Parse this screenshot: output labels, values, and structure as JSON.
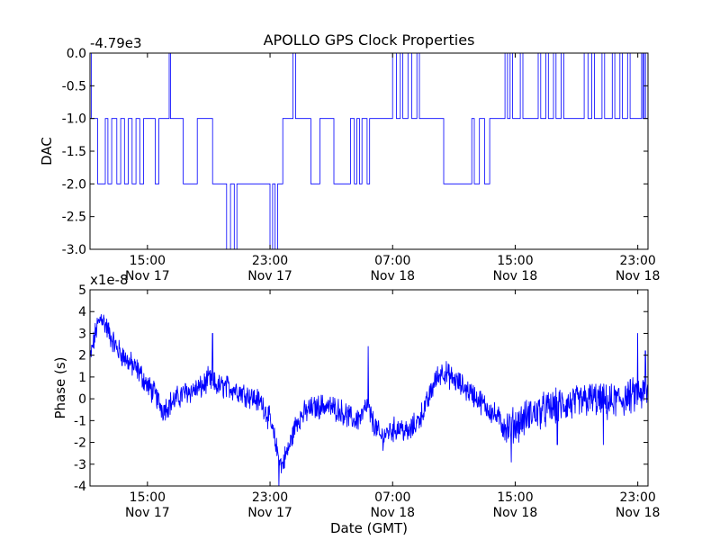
{
  "chart_data": [
    {
      "type": "line",
      "title": "APOLLO GPS Clock Properties",
      "ylabel": "DAC",
      "xlabel": "",
      "offset_label": "-4.79e3",
      "series_color": "#0000ff",
      "xlim": [
        "Nov 17 11:15",
        "Nov 18 23:40"
      ],
      "ylim": [
        -3.0,
        0.0
      ],
      "y_ticks": [
        "0.0",
        "-0.5",
        "-1.0",
        "-1.5",
        "-2.0",
        "-2.5",
        "-3.0"
      ],
      "x_ticks": [
        {
          "time": "15:00",
          "date": "Nov 17"
        },
        {
          "time": "23:00",
          "date": "Nov 17"
        },
        {
          "time": "07:00",
          "date": "Nov 18"
        },
        {
          "time": "15:00",
          "date": "Nov 18"
        },
        {
          "time": "23:00",
          "date": "Nov 18"
        }
      ],
      "steps": [
        [
          "Nov 17 11:15",
          0
        ],
        [
          "Nov 17 11:20",
          -1
        ],
        [
          "Nov 17 11:45",
          -2
        ],
        [
          "Nov 17 12:15",
          -1
        ],
        [
          "Nov 17 12:25",
          -2
        ],
        [
          "Nov 17 12:40",
          -1
        ],
        [
          "Nov 17 13:00",
          -2
        ],
        [
          "Nov 17 13:15",
          -1
        ],
        [
          "Nov 17 13:30",
          -2
        ],
        [
          "Nov 17 13:45",
          -1
        ],
        [
          "Nov 17 14:00",
          -2
        ],
        [
          "Nov 17 14:15",
          -1
        ],
        [
          "Nov 17 14:30",
          -2
        ],
        [
          "Nov 17 14:45",
          -1
        ],
        [
          "Nov 17 15:30",
          -2
        ],
        [
          "Nov 17 15:45",
          -1
        ],
        [
          "Nov 17 16:15",
          -1
        ],
        [
          "Nov 17 16:25",
          0
        ],
        [
          "Nov 17 16:30",
          -1
        ],
        [
          "Nov 17 17:20",
          -2
        ],
        [
          "Nov 17 18:15",
          -1
        ],
        [
          "Nov 17 19:15",
          -2
        ],
        [
          "Nov 17 20:10",
          -3
        ],
        [
          "Nov 17 20:25",
          -2
        ],
        [
          "Nov 17 20:40",
          -3
        ],
        [
          "Nov 17 20:50",
          -2
        ],
        [
          "Nov 17 23:00",
          -3
        ],
        [
          "Nov 17 23:10",
          -2
        ],
        [
          "Nov 17 23:20",
          -3
        ],
        [
          "Nov 17 23:30",
          -2
        ],
        [
          "Nov 17 23:50",
          -1
        ],
        [
          "Nov 18 00:30",
          0
        ],
        [
          "Nov 18 00:40",
          -1
        ],
        [
          "Nov 18 01:40",
          -2
        ],
        [
          "Nov 18 02:15",
          -1
        ],
        [
          "Nov 18 03:10",
          -2
        ],
        [
          "Nov 18 04:15",
          -1
        ],
        [
          "Nov 18 04:30",
          -2
        ],
        [
          "Nov 18 04:40",
          -1
        ],
        [
          "Nov 18 04:50",
          -2
        ],
        [
          "Nov 18 05:00",
          -1
        ],
        [
          "Nov 18 05:20",
          -2
        ],
        [
          "Nov 18 05:30",
          -1
        ],
        [
          "Nov 18 07:00",
          0
        ],
        [
          "Nov 18 07:15",
          -1
        ],
        [
          "Nov 18 07:30",
          0
        ],
        [
          "Nov 18 07:40",
          -1
        ],
        [
          "Nov 18 08:00",
          0
        ],
        [
          "Nov 18 08:15",
          -1
        ],
        [
          "Nov 18 08:35",
          0
        ],
        [
          "Nov 18 08:45",
          -1
        ],
        [
          "Nov 18 09:00",
          -1
        ],
        [
          "Nov 18 10:00",
          -1
        ],
        [
          "Nov 18 10:20",
          -2
        ],
        [
          "Nov 18 12:10",
          -1
        ],
        [
          "Nov 18 12:20",
          -2
        ],
        [
          "Nov 18 12:40",
          -1
        ],
        [
          "Nov 18 13:00",
          -2
        ],
        [
          "Nov 18 13:20",
          -1
        ],
        [
          "Nov 18 14:20",
          0
        ],
        [
          "Nov 18 14:30",
          -1
        ],
        [
          "Nov 18 14:40",
          0
        ],
        [
          "Nov 18 14:50",
          -1
        ],
        [
          "Nov 18 15:20",
          0
        ],
        [
          "Nov 18 15:30",
          -1
        ],
        [
          "Nov 18 16:00",
          -1
        ],
        [
          "Nov 18 16:30",
          0
        ],
        [
          "Nov 18 16:40",
          -1
        ],
        [
          "Nov 18 17:00",
          0
        ],
        [
          "Nov 18 17:10",
          -1
        ],
        [
          "Nov 18 17:30",
          0
        ],
        [
          "Nov 18 17:40",
          -1
        ],
        [
          "Nov 18 18:00",
          0
        ],
        [
          "Nov 18 18:10",
          -1
        ],
        [
          "Nov 18 19:30",
          0
        ],
        [
          "Nov 18 19:45",
          -1
        ],
        [
          "Nov 18 20:00",
          0
        ],
        [
          "Nov 18 20:10",
          -1
        ],
        [
          "Nov 18 20:40",
          0
        ],
        [
          "Nov 18 20:50",
          -1
        ],
        [
          "Nov 18 21:20",
          0
        ],
        [
          "Nov 18 21:30",
          -1
        ],
        [
          "Nov 18 21:50",
          0
        ],
        [
          "Nov 18 22:00",
          -1
        ],
        [
          "Nov 18 22:20",
          0
        ],
        [
          "Nov 18 22:30",
          -1
        ],
        [
          "Nov 18 23:00",
          -1
        ],
        [
          "Nov 18 23:15",
          0
        ],
        [
          "Nov 18 23:20",
          -1
        ],
        [
          "Nov 18 23:25",
          0
        ],
        [
          "Nov 18 23:30",
          -1
        ],
        [
          "Nov 18 23:40",
          -1
        ]
      ]
    },
    {
      "type": "line",
      "title": "",
      "ylabel": "Phase (s)",
      "xlabel": "Date (GMT)",
      "offset_label": "x1e-8",
      "series_color": "#0000ff",
      "xlim": [
        "Nov 17 11:15",
        "Nov 18 23:40"
      ],
      "ylim": [
        -4,
        5
      ],
      "y_ticks": [
        "5",
        "4",
        "3",
        "2",
        "1",
        "0",
        "-1",
        "-2",
        "-3",
        "-4"
      ],
      "x_ticks": [
        {
          "time": "15:00",
          "date": "Nov 17"
        },
        {
          "time": "23:00",
          "date": "Nov 17"
        },
        {
          "time": "07:00",
          "date": "Nov 18"
        },
        {
          "time": "15:00",
          "date": "Nov 18"
        },
        {
          "time": "23:00",
          "date": "Nov 18"
        }
      ],
      "trend": [
        [
          "Nov 17 11:15",
          1.8
        ],
        [
          "Nov 17 11:40",
          3.2
        ],
        [
          "Nov 17 12:00",
          3.8
        ],
        [
          "Nov 17 12:30",
          3.0
        ],
        [
          "Nov 17 13:00",
          2.3
        ],
        [
          "Nov 17 13:45",
          1.7
        ],
        [
          "Nov 17 14:30",
          1.2
        ],
        [
          "Nov 17 15:00",
          0.6
        ],
        [
          "Nov 17 15:30",
          0.2
        ],
        [
          "Nov 17 16:00",
          -0.5
        ],
        [
          "Nov 17 16:30",
          -0.2
        ],
        [
          "Nov 17 17:30",
          0.3
        ],
        [
          "Nov 17 18:30",
          0.5
        ],
        [
          "Nov 17 19:00",
          0.9
        ],
        [
          "Nov 17 19:30",
          0.6
        ],
        [
          "Nov 17 20:30",
          0.5
        ],
        [
          "Nov 17 21:30",
          0.2
        ],
        [
          "Nov 17 22:30",
          -0.2
        ],
        [
          "Nov 17 23:00",
          -1.0
        ],
        [
          "Nov 17 23:30",
          -2.5
        ],
        [
          "Nov 17 23:45",
          -3.1
        ],
        [
          "Nov 18 00:15",
          -2.2
        ],
        [
          "Nov 18 00:45",
          -1.0
        ],
        [
          "Nov 18 01:30",
          -0.5
        ],
        [
          "Nov 18 02:30",
          -0.3
        ],
        [
          "Nov 18 03:30",
          -0.5
        ],
        [
          "Nov 18 04:30",
          -1.0
        ],
        [
          "Nov 18 05:00",
          -0.8
        ],
        [
          "Nov 18 05:20",
          -0.3
        ],
        [
          "Nov 18 05:40",
          -1.0
        ],
        [
          "Nov 18 06:15",
          -1.8
        ],
        [
          "Nov 18 06:45",
          -1.5
        ],
        [
          "Nov 18 07:30",
          -1.3
        ],
        [
          "Nov 18 08:00",
          -1.6
        ],
        [
          "Nov 18 08:40",
          -1.0
        ],
        [
          "Nov 18 09:15",
          -0.2
        ],
        [
          "Nov 18 09:45",
          0.8
        ],
        [
          "Nov 18 10:15",
          1.3
        ],
        [
          "Nov 18 10:45",
          1.0
        ],
        [
          "Nov 18 11:30",
          0.6
        ],
        [
          "Nov 18 12:15",
          0.2
        ],
        [
          "Nov 18 13:00",
          -0.3
        ],
        [
          "Nov 18 13:45",
          -0.8
        ],
        [
          "Nov 18 14:30",
          -1.3
        ],
        [
          "Nov 18 15:15",
          -1.1
        ],
        [
          "Nov 18 16:00",
          -0.7
        ],
        [
          "Nov 18 17:00",
          -0.5
        ],
        [
          "Nov 18 18:00",
          -0.3
        ],
        [
          "Nov 18 19:00",
          -0.2
        ],
        [
          "Nov 18 20:00",
          0.0
        ],
        [
          "Nov 18 21:00",
          -0.2
        ],
        [
          "Nov 18 22:00",
          0.0
        ],
        [
          "Nov 18 23:00",
          0.2
        ],
        [
          "Nov 18 23:40",
          0.2
        ]
      ],
      "spikes": [
        [
          "Nov 17 19:15",
          3.0
        ],
        [
          "Nov 17 23:35",
          -4.0
        ],
        [
          "Nov 18 05:25",
          2.4
        ],
        [
          "Nov 18 14:45",
          -2.9
        ],
        [
          "Nov 18 17:45",
          -2.1
        ],
        [
          "Nov 18 20:45",
          -2.1
        ],
        [
          "Nov 18 23:00",
          3.0
        ],
        [
          "Nov 18 23:30",
          2.2
        ]
      ]
    }
  ]
}
